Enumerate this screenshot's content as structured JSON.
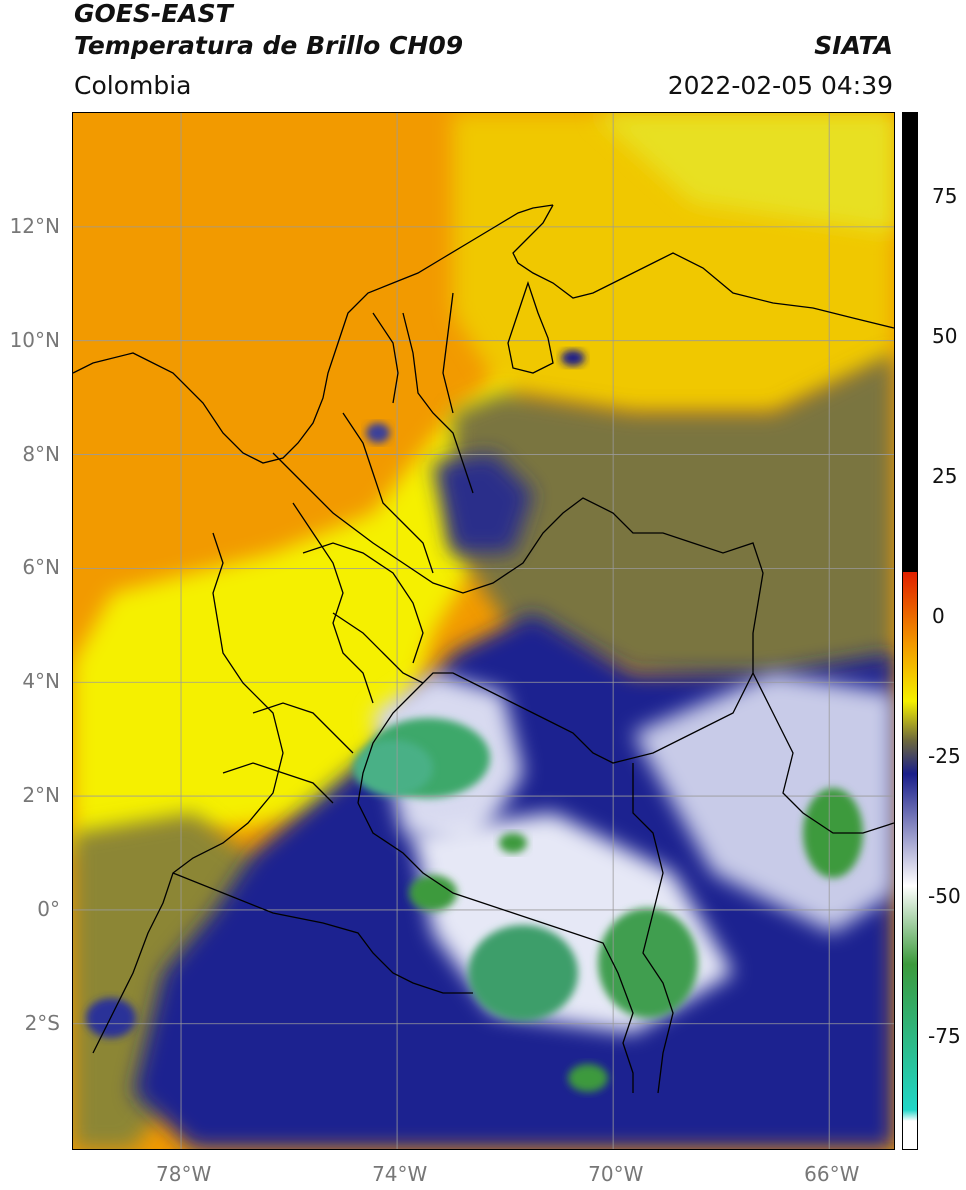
{
  "header": {
    "satellite": "GOES-EAST",
    "product": "Temperatura de Brillo CH09",
    "region": "Colombia",
    "agency": "SIATA",
    "timestamp": "2022-02-05 04:39"
  },
  "map": {
    "lon_range": [
      -80,
      -64.8
    ],
    "lat_range": [
      -4.2,
      14.0
    ],
    "lat_ticks": [
      {
        "value": 12,
        "label": "12°N"
      },
      {
        "value": 10,
        "label": "10°N"
      },
      {
        "value": 8,
        "label": "8°N"
      },
      {
        "value": 6,
        "label": "6°N"
      },
      {
        "value": 4,
        "label": "4°N"
      },
      {
        "value": 2,
        "label": "2°N"
      },
      {
        "value": 0,
        "label": "0°"
      },
      {
        "value": -2,
        "label": "2°S"
      }
    ],
    "lon_ticks": [
      {
        "value": -78,
        "label": "78°W"
      },
      {
        "value": -74,
        "label": "74°W"
      },
      {
        "value": -70,
        "label": "70°W"
      },
      {
        "value": -66,
        "label": "66°W"
      }
    ],
    "grid": true
  },
  "colorbar": {
    "range": [
      -95,
      90
    ],
    "ticks": [
      {
        "value": 75,
        "label": "75"
      },
      {
        "value": 50,
        "label": "50"
      },
      {
        "value": 25,
        "label": "25"
      },
      {
        "value": 0,
        "label": "0"
      },
      {
        "value": -25,
        "label": "-25"
      },
      {
        "value": -50,
        "label": "-50"
      },
      {
        "value": -75,
        "label": "-75"
      }
    ],
    "colors": {
      "black": "#000000",
      "red": "#e02000",
      "orange": "#f29a00",
      "yellow": "#f5f000",
      "olive": "#6e6a3c",
      "navy": "#1a1f8a",
      "white": "#ffffff",
      "green": "#3c9a3c",
      "teal": "#20d6c8"
    }
  }
}
